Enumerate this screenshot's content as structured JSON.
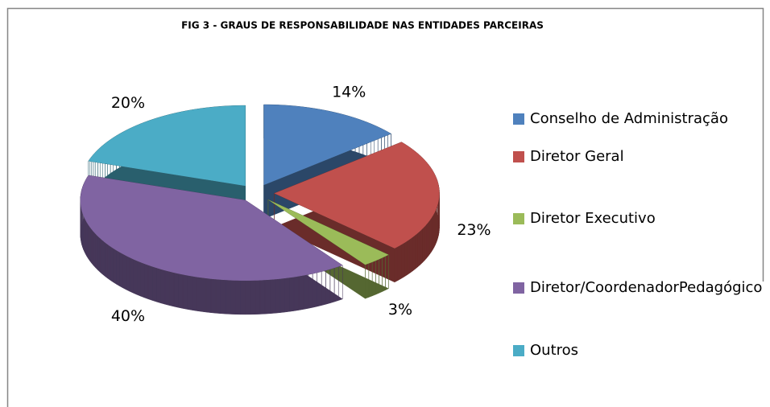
{
  "chart_data": {
    "type": "pie3d",
    "title": "FIG 3 - GRAUS DE RESPONSABILIDADE NAS ENTIDADES PARCEIRAS",
    "categories": [
      "Conselho de Administração",
      "Diretor Geral",
      "Diretor Executivo",
      "Diretor/CoordenadorPedagógico",
      "Outros"
    ],
    "values": [
      14,
      23,
      3,
      40,
      20
    ],
    "value_labels": [
      "14%",
      "23%",
      "3%",
      "40%",
      "20%"
    ],
    "colors": [
      "#4f81bd",
      "#c0504d",
      "#9bbb59",
      "#8064a2",
      "#4bacc6"
    ],
    "legend": "right"
  }
}
